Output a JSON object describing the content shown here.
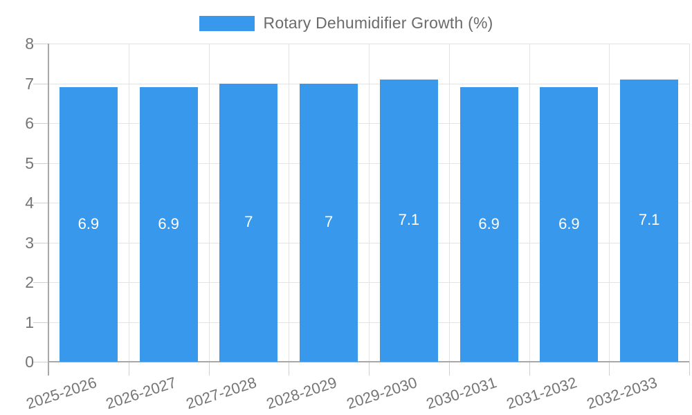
{
  "legend": {
    "label": "Rotary Dehumidifier Growth (%)"
  },
  "chart_data": {
    "type": "bar",
    "title": "Rotary Dehumidifier Growth (%)",
    "categories": [
      "2025-2026",
      "2026-2027",
      "2027-2028",
      "2028-2029",
      "2029-2030",
      "2030-2031",
      "2031-2032",
      "2032-2033"
    ],
    "values": [
      6.9,
      6.9,
      7,
      7,
      7.1,
      6.9,
      6.9,
      7.1
    ],
    "value_labels": [
      "6.9",
      "6.9",
      "7",
      "7",
      "7.1",
      "6.9",
      "6.9",
      "7.1"
    ],
    "xlabel": "",
    "ylabel": "",
    "ylim": [
      0,
      8
    ],
    "yticks": [
      0,
      1,
      2,
      3,
      4,
      5,
      6,
      7,
      8
    ],
    "grid": true,
    "legend_position": "top",
    "colors": {
      "bar": "#3898ec",
      "bar_label": "#ffffff",
      "axis_text": "#757575",
      "legend_text": "#6b6b6b",
      "gridline": "#e3e3e3",
      "tick": "#cfcfcf",
      "axis_line": "#a8a8a8",
      "background": "#ffffff"
    }
  }
}
